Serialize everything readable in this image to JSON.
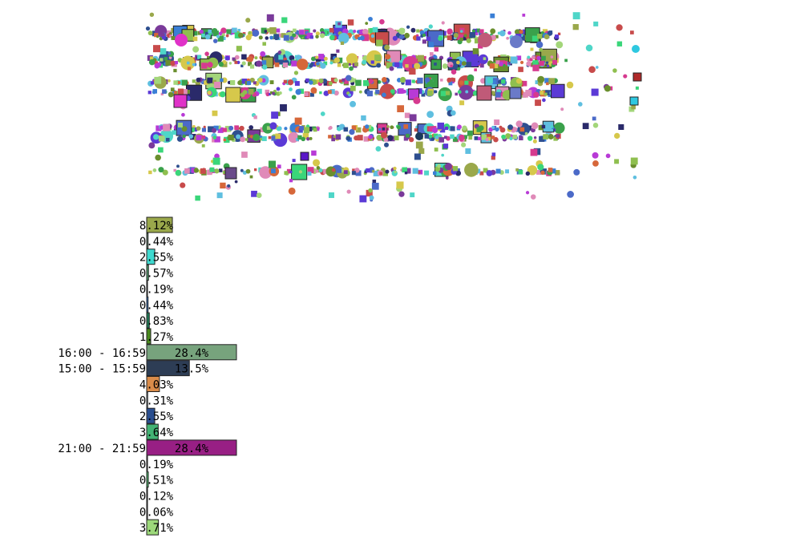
{
  "chart_data": {
    "type": "bar",
    "orientation": "horizontal",
    "title": "",
    "xlabel": "",
    "ylabel": "",
    "categories": [
      "",
      "",
      "",
      "",
      "",
      "",
      "",
      "",
      "16:00 - 16:59",
      "15:00 - 15:59",
      "",
      "",
      "",
      "",
      "21:00 - 21:59",
      "",
      "",
      "",
      "",
      ""
    ],
    "values": [
      8.12,
      0.44,
      2.55,
      0.57,
      0.19,
      0.44,
      0.83,
      1.27,
      28.4,
      13.5,
      4.03,
      0.31,
      2.55,
      3.64,
      28.4,
      0.19,
      0.51,
      0.12,
      0.06,
      3.71
    ],
    "value_labels": [
      "8.12%",
      "0.44%",
      "2.55%",
      "0.57%",
      "0.19%",
      "0.44%",
      "0.83%",
      "1.27%",
      "28.4%",
      "13.5%",
      "4.03%",
      "0.31%",
      "2.55%",
      "3.64%",
      "28.4%",
      "0.19%",
      "0.51%",
      "0.12%",
      "0.06%",
      "3.71%"
    ],
    "colors": [
      "#9aa84b",
      "#6f8f7a",
      "#3fd9cf",
      "#51a26f",
      "#4a4fa0",
      "#3a7fd6",
      "#1f7a55",
      "#4a8a1e",
      "#77a37d",
      "#2d3d55",
      "#d98c4a",
      "#b8c4d4",
      "#2a4e8f",
      "#43b374",
      "#981f84",
      "#c8b4e0",
      "#4fbf6f",
      "#d4a4d8",
      "#e8c8e8",
      "#9cd87a"
    ],
    "xlim": [
      0,
      28.4
    ],
    "grid": false,
    "legend": "none"
  },
  "scatter_data": {
    "type": "scatter",
    "title": "",
    "xlabel": "",
    "ylabel": "",
    "grid": false,
    "legend": "none"
  }
}
